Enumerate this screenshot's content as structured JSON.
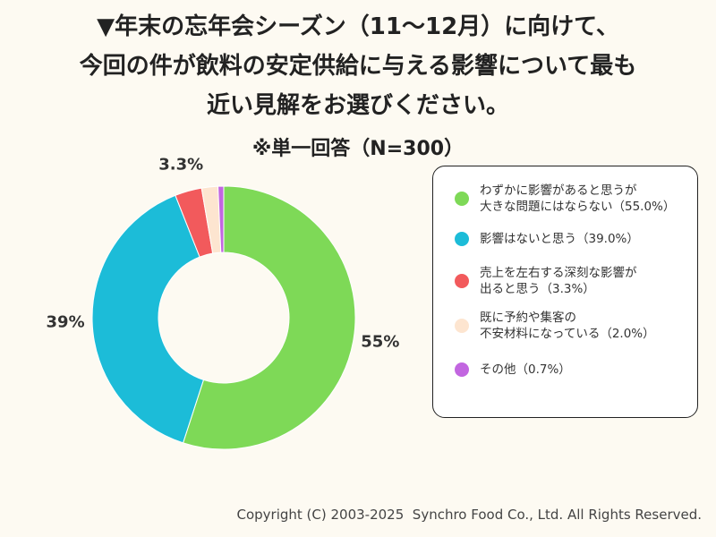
{
  "chart_data": {
    "type": "donut",
    "title": "▼年末の忘年会シーズン（11〜12月）に向けて、\n今回の件が飲料の安定供給に与える影響について最も\n近い見解をお選びください。",
    "subtitle": "※単一回答（N=300）",
    "categories": [
      "わずかに影響があると思うが\n大きな問題にはならない（55.0%）",
      "影響はないと思う（39.0%）",
      "売上を左右する深刻な影響が\n出ると思う（3.3%）",
      "既に予約や集客の\n不安材料になっている（2.0%）",
      "その他（0.7%）"
    ],
    "values": [
      55.0,
      39.0,
      3.3,
      2.0,
      0.7
    ],
    "value_labels": [
      "55%",
      "39%",
      "3.3%",
      null,
      null
    ],
    "colors": [
      "#7ed957",
      "#1cbcd8",
      "#f25a5c",
      "#fde5d0",
      "#c266e0"
    ],
    "footer": "Copyright (C) 2003-2025  Synchro Food Co., Ltd. All Rights Reserved."
  }
}
